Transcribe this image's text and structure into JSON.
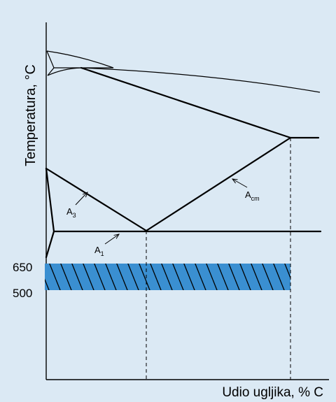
{
  "diagram": {
    "y_axis_label": "Temperatura, °C",
    "x_axis_label": "Udio ugljika, % C",
    "band_top_label": "650",
    "band_bottom_label": "500",
    "curve_a3_base": "A",
    "curve_a3_sub": "3",
    "curve_a1_base": "A",
    "curve_a1_sub": "1",
    "curve_acm_base": "A",
    "curve_acm_sub": "cm"
  },
  "colors": {
    "background": "#dbe9f4",
    "band_fill": "#3a8fd1",
    "line": "#000000"
  }
}
